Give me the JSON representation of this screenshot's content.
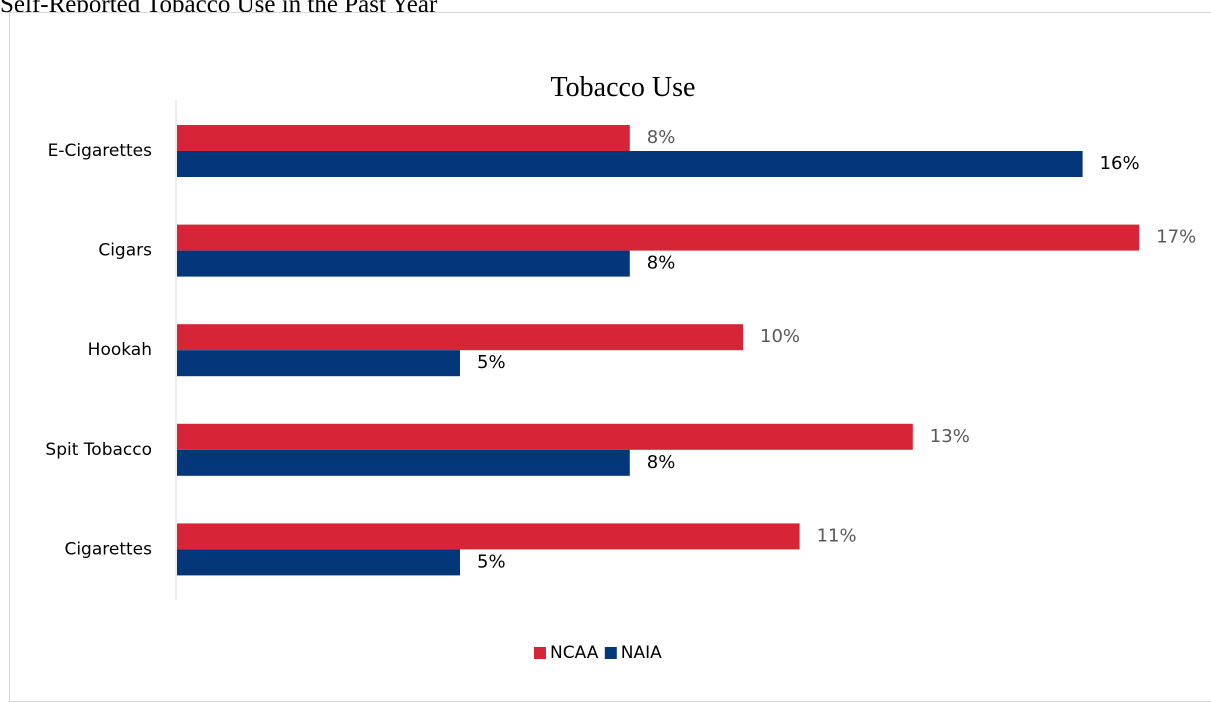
{
  "page": {
    "heading": "Self-Reported Tobacco Use in the Past Year"
  },
  "chart_data": {
    "type": "bar",
    "orientation": "horizontal",
    "title": "Tobacco Use",
    "categories": [
      "E-Cigarettes",
      "Cigars",
      "Hookah",
      "Spit Tobacco",
      "Cigarettes"
    ],
    "series": [
      {
        "name": "NCAA",
        "color": "#d62536",
        "values": [
          8,
          17,
          10,
          13,
          11
        ],
        "labels": [
          "8%",
          "17%",
          "10%",
          "13%",
          "11%"
        ],
        "label_color": "#595959"
      },
      {
        "name": "NAIA",
        "color": "#04367a",
        "values": [
          16,
          8,
          5,
          8,
          5
        ],
        "labels": [
          "16%",
          "8%",
          "5%",
          "8%",
          "5%"
        ],
        "label_color": "#000000"
      }
    ],
    "xlim": [
      0,
      17
    ],
    "value_axis_visible": false,
    "grid": false,
    "legend_position": "bottom"
  }
}
